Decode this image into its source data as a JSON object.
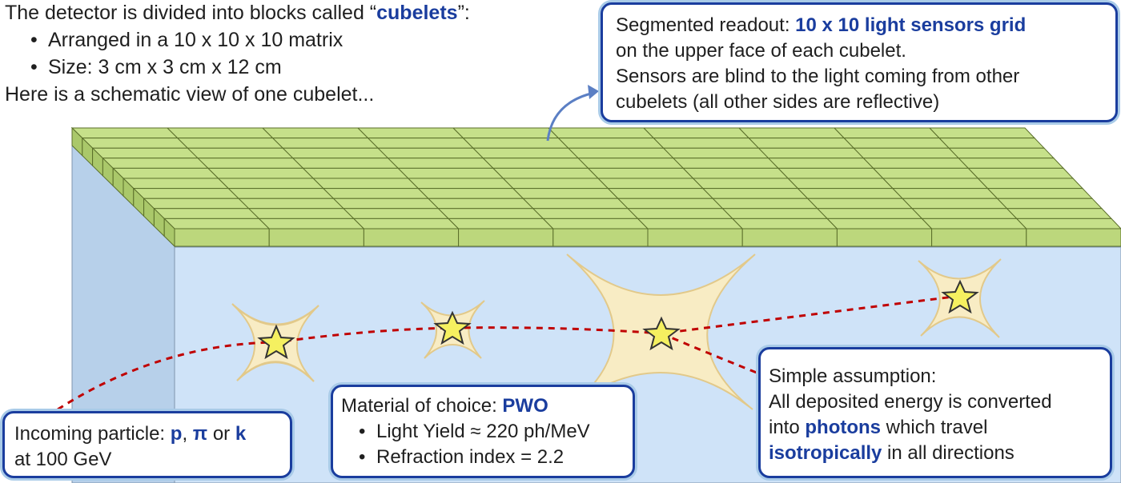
{
  "intro": {
    "line1_prefix": "The detector is divided into blocks called “",
    "line1_keyword": "cubelets",
    "line1_suffix": "”:",
    "bullets": [
      "Arranged in a 10 x 10 x 10 matrix",
      "Size: 3 cm x 3 cm x 12 cm"
    ],
    "line_last": "Here is a schematic view of one cubelet..."
  },
  "readout_box": {
    "prefix": "Segmented readout: ",
    "keyword": "10 x 10 light sensors grid",
    "line2": "on the upper face of each cubelet.",
    "line3": "Sensors are blind to the light coming from other",
    "line4": "cubelets (all other sides are reflective)"
  },
  "particle_box": {
    "prefix": "Incoming particle: ",
    "p": "p",
    "sep1": ", ",
    "pi": "π",
    "sep2": " or ",
    "k": "k",
    "line2": "at 100 GeV"
  },
  "material_box": {
    "prefix": "Material of choice: ",
    "keyword": "PWO",
    "bullets": [
      "Light Yield ≈ 220 ph/MeV",
      "Refraction index = 2.2"
    ]
  },
  "assumption_box": {
    "line1": "Simple assumption:",
    "line2": "All deposited energy is converted",
    "line3_prefix": "into ",
    "line3_keyword": "photons",
    "line3_suffix": " which travel",
    "line4_keyword": "isotropically",
    "line4_suffix": " in all directions"
  },
  "colors": {
    "sensor_green": "#c6e08a",
    "sensor_edge": "#5a6e2a",
    "cube_front": "#cfe3f8",
    "cube_side": "#b7d0ea",
    "track_red": "#c00000",
    "star_fill": "#f5f060",
    "blob_fill": "#f8ecc4",
    "accent_blue": "#1a3d9e"
  },
  "icons": [
    "star-icon",
    "curved-arrow-icon"
  ]
}
